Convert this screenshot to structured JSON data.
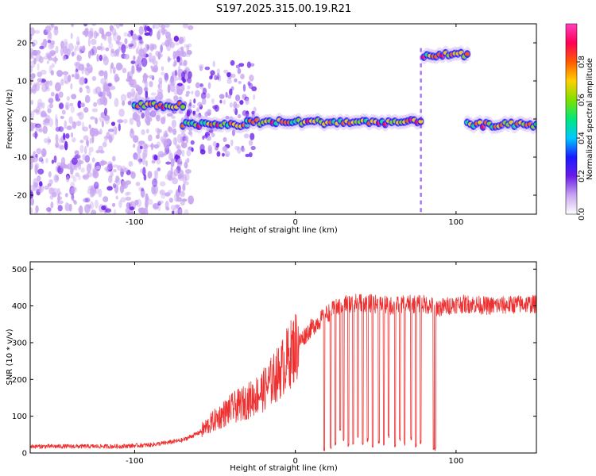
{
  "chart_data": [
    {
      "type": "heatmap",
      "title": "S197.2025.315.00.19.R21",
      "xlabel": "Height of straight line (km)",
      "ylabel": "Frequency (Hz)",
      "xlim": [
        -165,
        150
      ],
      "ylim": [
        -25,
        25
      ],
      "xticks": [
        -100,
        0,
        100
      ],
      "yticks": [
        -20,
        -10,
        0,
        10,
        20
      ],
      "colorbar": {
        "label": "Normalized spectral amplitude",
        "range": [
          0,
          1
        ],
        "ticks": [
          "0.0",
          "0.2",
          "0.4",
          "0.6",
          "0.8"
        ],
        "colormap": [
          "#ffffff",
          "#c8a6f0",
          "#6a1ce8",
          "#1a1aff",
          "#00c8ff",
          "#00e87a",
          "#80e000",
          "#ffd000",
          "#ff5a00",
          "#ff0055",
          "#ff40c0"
        ]
      },
      "ridge_segments": [
        {
          "x_start": -100,
          "x_end": -70,
          "freq_hz": 3.5
        },
        {
          "x_start": -70,
          "x_end": -30,
          "freq_hz": -1.5
        },
        {
          "x_start": -30,
          "x_end": 78,
          "freq_hz": -0.8
        },
        {
          "x_start": 80,
          "x_end": 107,
          "freq_hz": 16.8
        },
        {
          "x_start": 107,
          "x_end": 150,
          "freq_hz": -1.5
        }
      ]
    },
    {
      "type": "line",
      "xlabel": "Height of straight line (km)",
      "ylabel": "SNR (10 * v/v)",
      "xlim": [
        -165,
        150
      ],
      "ylim": [
        0,
        520
      ],
      "xticks": [
        -100,
        0,
        100
      ],
      "yticks": [
        0,
        100,
        200,
        300,
        400,
        500
      ],
      "color": "#ee3030",
      "series": [
        {
          "name": "SNR",
          "x": [
            -165,
            -150,
            -130,
            -110,
            -100,
            -90,
            -80,
            -70,
            -60,
            -50,
            -40,
            -30,
            -20,
            -10,
            0,
            10,
            20,
            30,
            40,
            50,
            60,
            70,
            80,
            90,
            100,
            110,
            120,
            130,
            140,
            150
          ],
          "values": [
            18,
            18,
            18,
            18,
            20,
            22,
            28,
            35,
            55,
            90,
            120,
            140,
            170,
            220,
            290,
            340,
            380,
            405,
            410,
            405,
            400,
            405,
            405,
            395,
            405,
            405,
            400,
            402,
            405,
            405
          ]
        }
      ],
      "dips": [
        {
          "x": 18,
          "min": 5
        },
        {
          "x": 22,
          "min": 10
        },
        {
          "x": 25,
          "min": 20
        },
        {
          "x": 28,
          "min": 60
        },
        {
          "x": 30,
          "min": 30
        },
        {
          "x": 33,
          "min": 15
        },
        {
          "x": 36,
          "min": 20
        },
        {
          "x": 39,
          "min": 40
        },
        {
          "x": 42,
          "min": 20
        },
        {
          "x": 45,
          "min": 30
        },
        {
          "x": 48,
          "min": 15
        },
        {
          "x": 52,
          "min": 25
        },
        {
          "x": 55,
          "min": 20
        },
        {
          "x": 58,
          "min": 40
        },
        {
          "x": 62,
          "min": 15
        },
        {
          "x": 65,
          "min": 30
        },
        {
          "x": 68,
          "min": 20
        },
        {
          "x": 72,
          "min": 35
        },
        {
          "x": 75,
          "min": 15
        },
        {
          "x": 78,
          "min": 25
        },
        {
          "x": 86,
          "min": 5
        },
        {
          "x": 87,
          "min": 5
        }
      ]
    }
  ]
}
